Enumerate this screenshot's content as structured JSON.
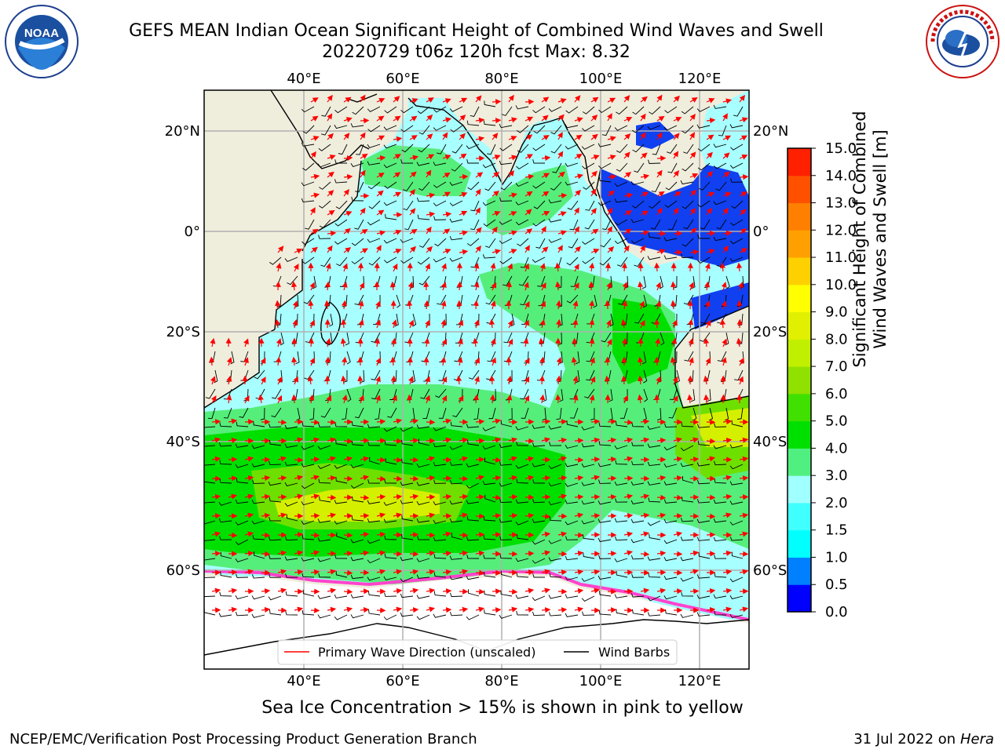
{
  "title": {
    "line1": "GEFS MEAN Indian Ocean Significant Height of Combined Wind Waves and Swell",
    "line2": "20220729 t06z 120h fcst   Max: 8.32"
  },
  "logos": {
    "left": {
      "name": "noaa-logo",
      "text": "NOAA",
      "ring_text": "NATIONAL OCEANIC AND ATMOSPHERIC ADMINISTRATION · U.S. DEPARTMENT OF COMMERCE"
    },
    "right": {
      "name": "nws-logo",
      "ring_text": "NATIONAL WEATHER SERVICE"
    }
  },
  "map": {
    "lon_ticks": [
      "40°E",
      "60°E",
      "80°E",
      "100°E",
      "120°E"
    ],
    "lat_ticks": [
      "20°N",
      "0°",
      "20°S",
      "40°S",
      "60°S"
    ],
    "extent": {
      "lon": [
        20,
        130
      ],
      "lat": [
        -75,
        25
      ]
    },
    "legend": {
      "wave_label": "Primary Wave Direction (unscaled)",
      "wind_label": "Wind Barbs"
    }
  },
  "colorbar": {
    "title_line1": "Significant Height of Combined",
    "title_line2": "Wind Waves and Swell [m]",
    "ticks": [
      "0.0",
      "0.5",
      "1.0",
      "1.5",
      "2.0",
      "3.0",
      "4.0",
      "5.0",
      "6.0",
      "7.0",
      "8.0",
      "9.0",
      "10.0",
      "11.0",
      "12.0",
      "13.0",
      "14.0",
      "15.0"
    ],
    "colors": [
      "#0000ff",
      "#0080ff",
      "#00ffff",
      "#40ffff",
      "#a0ffff",
      "#50f080",
      "#00e000",
      "#40e000",
      "#90e000",
      "#c0f000",
      "#e0f000",
      "#ffff00",
      "#ffd000",
      "#ffa000",
      "#ff8000",
      "#ff5000",
      "#ff2000"
    ]
  },
  "caption": "Sea Ice Concentration > 15% is shown in pink to yellow",
  "footer": {
    "left": "NCEP/EMC/Verification Post Processing Product Generation Branch",
    "right_date": "31 Jul 2022 on ",
    "right_host": "Hera"
  }
}
